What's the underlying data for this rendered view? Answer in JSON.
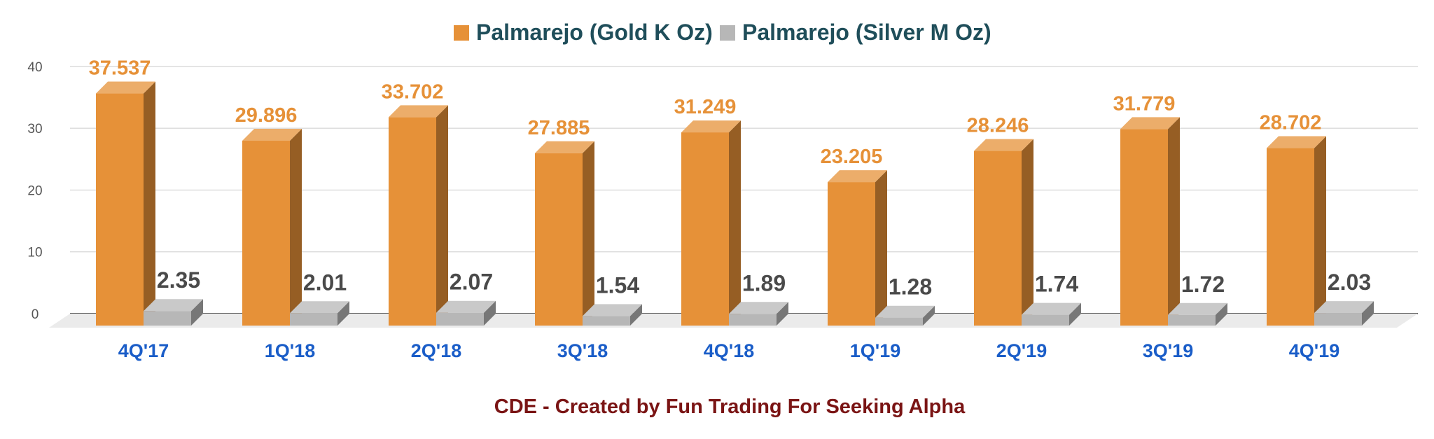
{
  "chart_data": {
    "type": "bar",
    "categories": [
      "4Q'17",
      "1Q'18",
      "2Q'18",
      "3Q'18",
      "4Q'18",
      "1Q'19",
      "2Q'19",
      "3Q'19",
      "4Q'19"
    ],
    "series": [
      {
        "name": "Palmarejo (Gold K Oz)",
        "values": [
          37.537,
          29.896,
          33.702,
          27.885,
          31.249,
          23.205,
          28.246,
          31.779,
          28.702
        ],
        "labels": [
          "37.537",
          "29.896",
          "33.702",
          "27.885",
          "31.249",
          "23.205",
          "28.246",
          "31.779",
          "28.702"
        ],
        "color": "#e69138"
      },
      {
        "name": "Palmarejo (Silver M Oz)",
        "values": [
          2.35,
          2.01,
          2.07,
          1.54,
          1.89,
          1.28,
          1.74,
          1.72,
          2.03
        ],
        "labels": [
          "2.35",
          "2.01",
          "2.07",
          "1.54",
          "1.89",
          "1.28",
          "1.74",
          "1.72",
          "2.03"
        ],
        "color": "#b7b7b7"
      }
    ],
    "yticks": [
      "0",
      "10",
      "20",
      "30",
      "40"
    ],
    "ylim": [
      0,
      40
    ],
    "grid": true,
    "legend_position": "top-center",
    "footer": "CDE - Created by Fun Trading  For Seeking Alpha"
  }
}
